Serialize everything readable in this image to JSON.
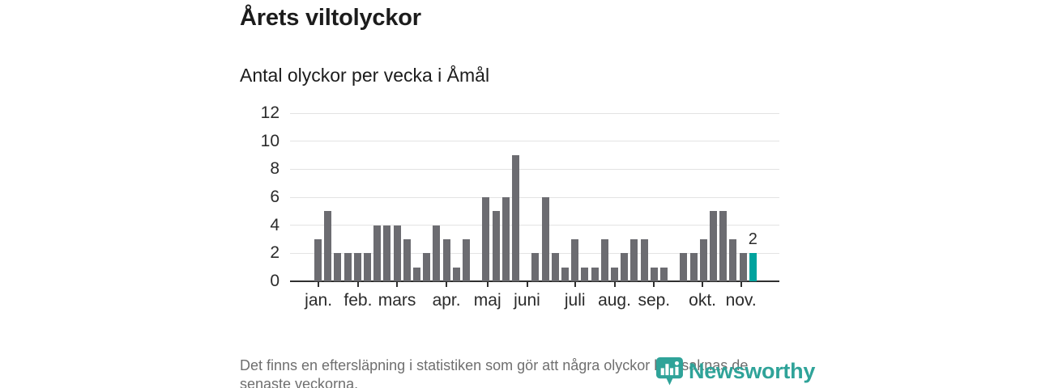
{
  "page": {
    "footnote_lines": [
      "Det finns en eftersläpning i statistiken som gör att några olyckor kan saknas de",
      "senaste veckorna."
    ],
    "brand": {
      "name": "Newsworthy"
    }
  },
  "colors": {
    "bar": "#6c6c71",
    "highlight": "#00a39e",
    "gridline": "#e3e3e3",
    "axis": "#2f2f2f",
    "label": "#2b2b2b",
    "footnote": "#6f6f6f",
    "brand": "#2fa399"
  },
  "chart_data": {
    "type": "bar",
    "title": "Årets viltolyckor",
    "subtitle": "Antal olyckor per vecka i Åmål",
    "x_unit": "vecka",
    "values": [
      3,
      5,
      2,
      2,
      2,
      2,
      4,
      4,
      4,
      3,
      1,
      2,
      4,
      3,
      1,
      3,
      0,
      6,
      5,
      6,
      9,
      0,
      2,
      6,
      2,
      1,
      3,
      1,
      1,
      3,
      1,
      2,
      3,
      3,
      1,
      1,
      0,
      2,
      2,
      3,
      5,
      5,
      3,
      2,
      2
    ],
    "highlight_index": 44,
    "highlight_value_label": "2",
    "ylim": [
      0,
      12
    ],
    "y_ticks": [
      0,
      2,
      4,
      6,
      8,
      10,
      12
    ],
    "grid": "horizontal",
    "legend": "none",
    "months": [
      {
        "label": "jan.",
        "week_index": 0.05
      },
      {
        "label": "feb.",
        "week_index": 4.05
      },
      {
        "label": "mars",
        "week_index": 8.0
      },
      {
        "label": "apr.",
        "week_index": 13.0
      },
      {
        "label": "maj",
        "week_index": 17.15
      },
      {
        "label": "juni",
        "week_index": 21.15
      },
      {
        "label": "juli",
        "week_index": 26.0
      },
      {
        "label": "aug.",
        "week_index": 30.0
      },
      {
        "label": "sep.",
        "week_index": 34.0
      },
      {
        "label": "okt.",
        "week_index": 38.9
      },
      {
        "label": "nov.",
        "week_index": 42.8
      }
    ]
  }
}
